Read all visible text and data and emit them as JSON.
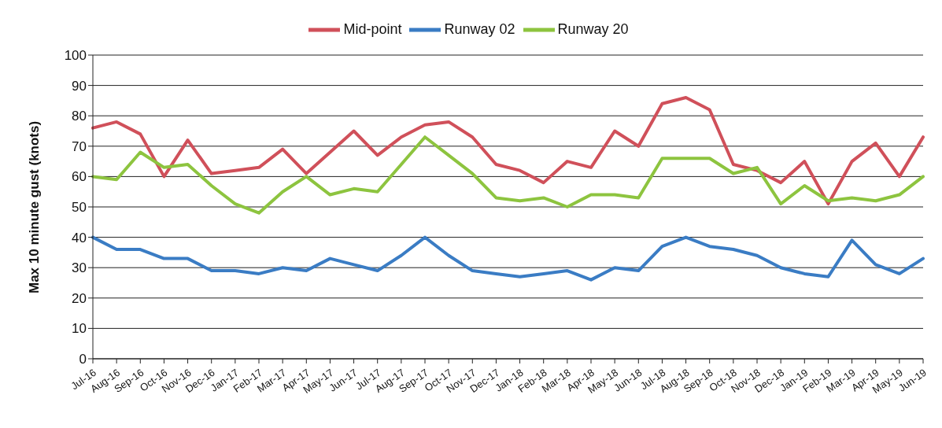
{
  "chart_data": {
    "type": "line",
    "ylabel": "Max 10 minute gust (knots)",
    "categories": [
      "Jul-16",
      "Aug-16",
      "Sep-16",
      "Oct-16",
      "Nov-16",
      "Dec-16",
      "Jan-17",
      "Feb-17",
      "Mar-17",
      "Apr-17",
      "May-17",
      "Jun-17",
      "Jul-17",
      "Aug-17",
      "Sep-17",
      "Oct-17",
      "Nov-17",
      "Dec-17",
      "Jan-18",
      "Feb-18",
      "Mar-18",
      "Apr-18",
      "May-18",
      "Jun-18",
      "Jul-18",
      "Aug-18",
      "Sep-18",
      "Oct-18",
      "Nov-18",
      "Dec-18",
      "Jan-19",
      "Feb-19",
      "Mar-19",
      "Apr-19",
      "May-19",
      "Jun-19"
    ],
    "series": [
      {
        "name": "Runway 02",
        "color": "#3a7cc4",
        "values": [
          40,
          36,
          36,
          33,
          33,
          29,
          29,
          28,
          30,
          29,
          33,
          31,
          29,
          34,
          40,
          34,
          29,
          28,
          27,
          28,
          29,
          26,
          30,
          29,
          37,
          40,
          37,
          36,
          34,
          30,
          28,
          27,
          39,
          31,
          28,
          33
        ]
      },
      {
        "name": "Mid-point",
        "color": "#d0505a",
        "values": [
          76,
          78,
          74,
          60,
          72,
          61,
          62,
          63,
          69,
          61,
          68,
          75,
          67,
          73,
          77,
          78,
          73,
          64,
          62,
          58,
          65,
          63,
          75,
          70,
          84,
          86,
          82,
          64,
          62,
          58,
          65,
          51,
          65,
          71,
          60,
          73
        ]
      },
      {
        "name": "Runway 20",
        "color": "#8dc43f",
        "values": [
          60,
          59,
          68,
          63,
          64,
          57,
          51,
          48,
          55,
          60,
          54,
          56,
          55,
          64,
          73,
          67,
          61,
          53,
          52,
          53,
          50,
          54,
          54,
          53,
          66,
          66,
          66,
          61,
          63,
          51,
          57,
          52,
          53,
          52,
          54,
          60
        ]
      }
    ],
    "ylim": [
      0,
      100
    ],
    "yticks": [
      0,
      10,
      20,
      30,
      40,
      50,
      60,
      70,
      80,
      90,
      100
    ],
    "grid": "y",
    "legend": "top",
    "marker": "none",
    "line_style": "solid"
  }
}
